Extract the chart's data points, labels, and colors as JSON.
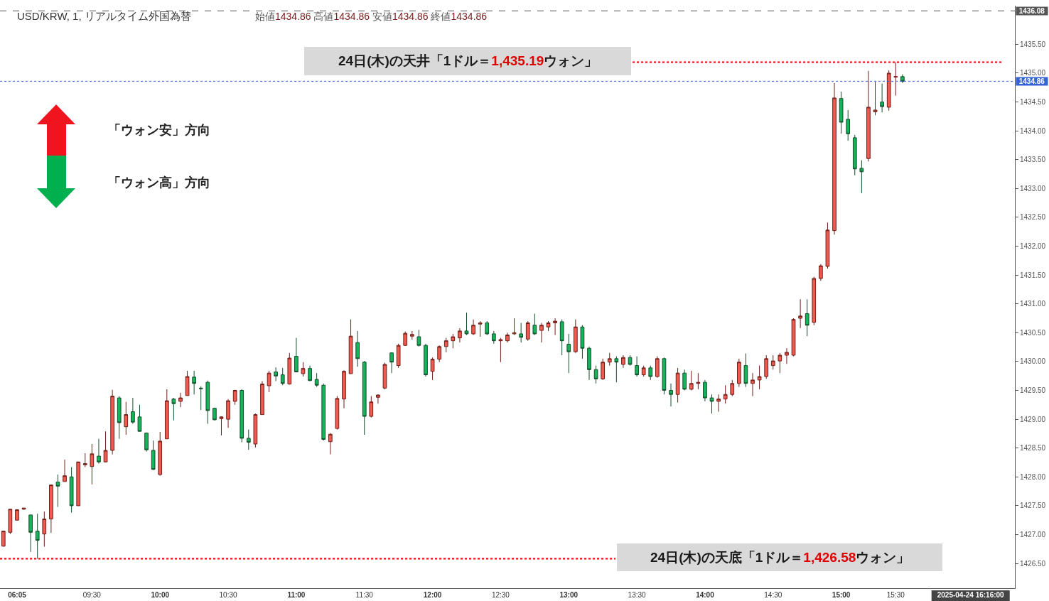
{
  "chart_data": {
    "type": "candlestick",
    "title": "USD/KRW, 1, リアルタイム外国為替",
    "subtitle": "始値1434.86 高値1434.86 安値1434.86 終値1434.86",
    "categories": [
      null,
      null,
      "06:05",
      null,
      null,
      null,
      null,
      null,
      null,
      null,
      null,
      null,
      null,
      "09:30",
      null,
      null,
      null,
      null,
      null,
      null,
      null,
      null,
      null,
      "10:00",
      null,
      null,
      null,
      null,
      null,
      null,
      null,
      null,
      null,
      "10:30",
      null,
      null,
      null,
      null,
      null,
      null,
      null,
      null,
      null,
      "11:00",
      null,
      null,
      null,
      null,
      null,
      null,
      null,
      null,
      null,
      "11:30",
      null,
      null,
      null,
      null,
      null,
      null,
      null,
      null,
      null,
      "12:00",
      null,
      null,
      null,
      null,
      null,
      null,
      null,
      null,
      null,
      "12:30",
      null,
      null,
      null,
      null,
      null,
      null,
      null,
      null,
      null,
      "13:00",
      null,
      null,
      null,
      null,
      null,
      null,
      null,
      null,
      null,
      "13:30",
      null,
      null,
      null,
      null,
      null,
      null,
      null,
      null,
      null,
      "14:00",
      null,
      null,
      null,
      null,
      null,
      null,
      null,
      null,
      null,
      "14:30",
      null,
      null,
      null,
      null,
      null,
      null,
      null,
      null,
      null,
      "15:00",
      null,
      null,
      null,
      null,
      null,
      null,
      null,
      "15:30",
      null,
      null,
      null,
      null,
      null,
      null,
      null,
      null,
      null,
      null,
      "2025-04-24 16:16:00",
      null,
      null,
      null,
      null,
      null,
      null
    ],
    "ohlc": [
      [
        1426.8,
        1427.06,
        1426.79,
        1427.06
      ],
      [
        1427.04,
        1427.44,
        1427.01,
        1427.44
      ],
      [
        1427.25,
        1427.44,
        1427.25,
        1427.43
      ],
      [
        1427.44,
        1427.46,
        1427.43,
        1427.46
      ],
      [
        1427.34,
        1427.34,
        1426.7,
        1427.04
      ],
      [
        1427.06,
        1427.36,
        1426.58,
        1426.9
      ],
      [
        1427.01,
        1427.4,
        1426.79,
        1427.27
      ],
      [
        1427.27,
        1427.86,
        1427.03,
        1427.86
      ],
      [
        1427.91,
        1428.04,
        1427.48,
        1427.84
      ],
      [
        1427.92,
        1428.3,
        1427.92,
        1428.02
      ],
      [
        1428.0,
        1428.17,
        1427.38,
        1427.5
      ],
      [
        1427.5,
        1428.26,
        1427.5,
        1428.26
      ],
      [
        1428.21,
        1428.41,
        1428.17,
        1428.23
      ],
      [
        1428.18,
        1428.57,
        1427.87,
        1428.4
      ],
      [
        1428.36,
        1428.66,
        1428.23,
        1428.26
      ],
      [
        1428.26,
        1428.79,
        1428.26,
        1428.46
      ],
      [
        1428.46,
        1429.51,
        1428.39,
        1429.4
      ],
      [
        1429.37,
        1429.4,
        1428.66,
        1428.94
      ],
      [
        1428.87,
        1429.3,
        1428.73,
        1429.08
      ],
      [
        1429.13,
        1429.37,
        1428.92,
        1428.95
      ],
      [
        1429.04,
        1429.25,
        1428.79,
        1428.79
      ],
      [
        1428.76,
        1428.77,
        1428.44,
        1428.47
      ],
      [
        1428.46,
        1428.63,
        1428.12,
        1428.13
      ],
      [
        1428.04,
        1428.78,
        1428.02,
        1428.62
      ],
      [
        1428.66,
        1429.52,
        1428.66,
        1429.32
      ],
      [
        1429.35,
        1429.37,
        1428.98,
        1429.27
      ],
      [
        1429.31,
        1429.46,
        1429.21,
        1429.37
      ],
      [
        1429.41,
        1429.84,
        1429.41,
        1429.74
      ],
      [
        1429.73,
        1429.84,
        1429.43,
        1429.62
      ],
      [
        1429.54,
        1429.57,
        1429.16,
        1429.53
      ],
      [
        1429.64,
        1429.67,
        1428.92,
        1429.15
      ],
      [
        1429.19,
        1429.2,
        1428.98,
        1428.99
      ],
      [
        1429.01,
        1429.05,
        1428.72,
        1429.04
      ],
      [
        1429.0,
        1429.35,
        1428.85,
        1429.32
      ],
      [
        1429.31,
        1429.51,
        1429.25,
        1429.5
      ],
      [
        1429.5,
        1429.52,
        1428.6,
        1428.67
      ],
      [
        1428.67,
        1428.82,
        1428.47,
        1428.6
      ],
      [
        1428.57,
        1429.1,
        1428.51,
        1429.08
      ],
      [
        1429.08,
        1429.66,
        1429.08,
        1429.61
      ],
      [
        1429.58,
        1429.84,
        1429.47,
        1429.8
      ],
      [
        1429.82,
        1429.9,
        1429.66,
        1429.75
      ],
      [
        1429.77,
        1429.89,
        1429.59,
        1429.62
      ],
      [
        1429.61,
        1430.15,
        1429.6,
        1430.06
      ],
      [
        1430.09,
        1430.41,
        1429.82,
        1429.82
      ],
      [
        1429.79,
        1429.99,
        1429.74,
        1429.88
      ],
      [
        1429.88,
        1429.93,
        1429.66,
        1429.67
      ],
      [
        1429.69,
        1429.8,
        1429.56,
        1429.59
      ],
      [
        1429.59,
        1429.62,
        1428.63,
        1428.65
      ],
      [
        1428.61,
        1428.76,
        1428.39,
        1428.74
      ],
      [
        1428.84,
        1429.4,
        1428.82,
        1429.36
      ],
      [
        1429.35,
        1429.85,
        1429.19,
        1429.83
      ],
      [
        1429.79,
        1430.73,
        1429.79,
        1430.44
      ],
      [
        1430.33,
        1430.53,
        1429.91,
        1430.05
      ],
      [
        1429.99,
        1430.01,
        1428.73,
        1429.05
      ],
      [
        1429.05,
        1429.4,
        1429.03,
        1429.3
      ],
      [
        1429.38,
        1429.43,
        1429.27,
        1429.42
      ],
      [
        1429.54,
        1429.98,
        1429.52,
        1429.95
      ],
      [
        1430.15,
        1430.16,
        1429.8,
        1429.99
      ],
      [
        1429.93,
        1430.31,
        1429.89,
        1430.28
      ],
      [
        1430.28,
        1430.52,
        1430.27,
        1430.49
      ],
      [
        1430.44,
        1430.53,
        1430.38,
        1430.47
      ],
      [
        1430.43,
        1430.55,
        1430.26,
        1430.28
      ],
      [
        1430.28,
        1430.31,
        1429.74,
        1429.77
      ],
      [
        1429.83,
        1430.07,
        1429.68,
        1430.04
      ],
      [
        1430.04,
        1430.28,
        1429.99,
        1430.26
      ],
      [
        1430.26,
        1430.41,
        1430.16,
        1430.36
      ],
      [
        1430.36,
        1430.48,
        1430.23,
        1430.43
      ],
      [
        1430.41,
        1430.58,
        1430.33,
        1430.53
      ],
      [
        1430.53,
        1430.85,
        1430.46,
        1430.48
      ],
      [
        1430.48,
        1430.73,
        1430.46,
        1430.63
      ],
      [
        1430.65,
        1430.7,
        1430.43,
        1430.67
      ],
      [
        1430.67,
        1430.7,
        1430.46,
        1430.48
      ],
      [
        1430.48,
        1430.53,
        1430.31,
        1430.36
      ],
      [
        1430.36,
        1430.41,
        1429.99,
        1430.38
      ],
      [
        1430.36,
        1430.5,
        1430.33,
        1430.46
      ],
      [
        1430.48,
        1430.75,
        1430.46,
        1430.5
      ],
      [
        1430.48,
        1430.67,
        1430.33,
        1430.42
      ],
      [
        1430.39,
        1430.7,
        1430.36,
        1430.67
      ],
      [
        1430.63,
        1430.83,
        1430.46,
        1430.48
      ],
      [
        1430.54,
        1430.67,
        1430.33,
        1430.63
      ],
      [
        1430.6,
        1430.7,
        1430.53,
        1430.67
      ],
      [
        1430.67,
        1430.75,
        1430.46,
        1430.7
      ],
      [
        1430.69,
        1430.73,
        1430.11,
        1430.36
      ],
      [
        1430.3,
        1430.48,
        1429.8,
        1430.17
      ],
      [
        1430.17,
        1430.73,
        1430.15,
        1430.6
      ],
      [
        1430.6,
        1430.63,
        1430.05,
        1430.23
      ],
      [
        1430.23,
        1430.26,
        1429.68,
        1429.86
      ],
      [
        1429.86,
        1429.93,
        1429.62,
        1429.7
      ],
      [
        1429.7,
        1430.05,
        1429.68,
        1429.99
      ],
      [
        1429.99,
        1430.15,
        1429.93,
        1430.05
      ],
      [
        1430.05,
        1430.09,
        1429.64,
        1429.99
      ],
      [
        1429.95,
        1430.11,
        1429.89,
        1430.07
      ],
      [
        1430.07,
        1430.11,
        1429.93,
        1429.95
      ],
      [
        1429.93,
        1430.09,
        1429.74,
        1429.77
      ],
      [
        1429.77,
        1429.93,
        1429.74,
        1429.89
      ],
      [
        1429.89,
        1429.93,
        1429.68,
        1429.74
      ],
      [
        1429.74,
        1430.09,
        1429.72,
        1430.05
      ],
      [
        1430.05,
        1430.07,
        1429.43,
        1429.5
      ],
      [
        1429.5,
        1429.62,
        1429.22,
        1429.43
      ],
      [
        1429.43,
        1429.89,
        1429.29,
        1429.8
      ],
      [
        1429.8,
        1429.86,
        1429.5,
        1429.52
      ],
      [
        1429.52,
        1429.84,
        1429.5,
        1429.62
      ],
      [
        1429.62,
        1429.8,
        1429.52,
        1429.64
      ],
      [
        1429.64,
        1429.68,
        1429.31,
        1429.37
      ],
      [
        1429.37,
        1429.43,
        1429.1,
        1429.31
      ],
      [
        1429.31,
        1429.43,
        1429.13,
        1429.35
      ],
      [
        1429.35,
        1429.59,
        1429.27,
        1429.43
      ],
      [
        1429.43,
        1429.68,
        1429.4,
        1429.62
      ],
      [
        1429.62,
        1430.05,
        1429.56,
        1429.99
      ],
      [
        1429.93,
        1430.14,
        1429.56,
        1429.62
      ],
      [
        1429.62,
        1429.8,
        1429.4,
        1429.68
      ],
      [
        1429.68,
        1429.93,
        1429.52,
        1429.74
      ],
      [
        1429.74,
        1430.11,
        1429.7,
        1430.05
      ],
      [
        1429.93,
        1430.11,
        1429.86,
        1430.01
      ],
      [
        1430.01,
        1430.15,
        1429.8,
        1430.11
      ],
      [
        1430.11,
        1430.23,
        1429.96,
        1430.16
      ],
      [
        1430.11,
        1430.75,
        1430.09,
        1430.73
      ],
      [
        1430.75,
        1431.08,
        1430.58,
        1430.79
      ],
      [
        1430.83,
        1431.08,
        1430.44,
        1430.63
      ],
      [
        1430.68,
        1431.47,
        1430.63,
        1431.44
      ],
      [
        1431.44,
        1431.69,
        1431.4,
        1431.66
      ],
      [
        1431.65,
        1432.41,
        1431.61,
        1432.28
      ],
      [
        1432.27,
        1434.83,
        1432.2,
        1434.57
      ],
      [
        1434.56,
        1434.68,
        1433.95,
        1434.15
      ],
      [
        1434.2,
        1434.36,
        1433.83,
        1433.95
      ],
      [
        1433.88,
        1433.93,
        1433.23,
        1433.34
      ],
      [
        1433.35,
        1433.49,
        1432.92,
        1433.29
      ],
      [
        1433.52,
        1435.04,
        1433.47,
        1434.41
      ],
      [
        1434.33,
        1434.85,
        1434.27,
        1434.36
      ],
      [
        1434.5,
        1434.82,
        1434.32,
        1434.42
      ],
      [
        1434.41,
        1435.05,
        1434.35,
        1435.0
      ],
      [
        1434.93,
        1435.19,
        1434.61,
        1434.94
      ],
      [
        1434.94,
        1434.98,
        1434.83,
        1434.86
      ],
      null,
      null,
      null,
      null,
      null,
      null,
      null,
      null,
      null,
      null,
      null,
      null,
      null,
      null,
      null,
      null
    ],
    "ylim": [
      1426.07,
      1436.17
    ],
    "yticks": [
      {
        "value": 1426.5,
        "label": "1426.50"
      },
      {
        "value": 1427,
        "label": "1427.00"
      },
      {
        "value": 1427.5,
        "label": "1427.50"
      },
      {
        "value": 1428,
        "label": "1428.00"
      },
      {
        "value": 1428.5,
        "label": "1428.50"
      },
      {
        "value": 1429,
        "label": "1429.00"
      },
      {
        "value": 1429.5,
        "label": "1429.50"
      },
      {
        "value": 1430,
        "label": "1430.00"
      },
      {
        "value": 1430.5,
        "label": "1430.50"
      },
      {
        "value": 1431,
        "label": "1431.00"
      },
      {
        "value": 1431.5,
        "label": "1431.50"
      },
      {
        "value": 1432,
        "label": "1432.00"
      },
      {
        "value": 1432.5,
        "label": "1432.50"
      },
      {
        "value": 1433,
        "label": "1433.00"
      },
      {
        "value": 1433.5,
        "label": "1433.50"
      },
      {
        "value": 1434,
        "label": "1434.00"
      },
      {
        "value": 1434.5,
        "label": "1434.50"
      },
      {
        "value": 1435,
        "label": "1435.00"
      },
      {
        "value": 1435.5,
        "label": "1435.50"
      }
    ],
    "ref_lines": [
      {
        "axis": "y",
        "value": 1435.19,
        "label": "24日(木)の天井「1ドル＝1,435.19ウォン」",
        "color": "#e00000",
        "line_style": "dotted"
      },
      {
        "axis": "y",
        "value": 1426.58,
        "label": "24日(木)の天底「1ドル＝1,426.58ウォン」",
        "color": "#e00000",
        "line_style": "dotted"
      },
      {
        "axis": "y",
        "value": 1434.86,
        "label": "1434.86",
        "color": "#3563d6",
        "line_style": "dotted"
      },
      {
        "axis": "y",
        "value": 1436.08,
        "label": "1436.08",
        "color": "#555555",
        "line_style": "dashed"
      }
    ],
    "annotations": [
      "「ウォン安」方向",
      "「ウォン高」方向"
    ]
  }
}
